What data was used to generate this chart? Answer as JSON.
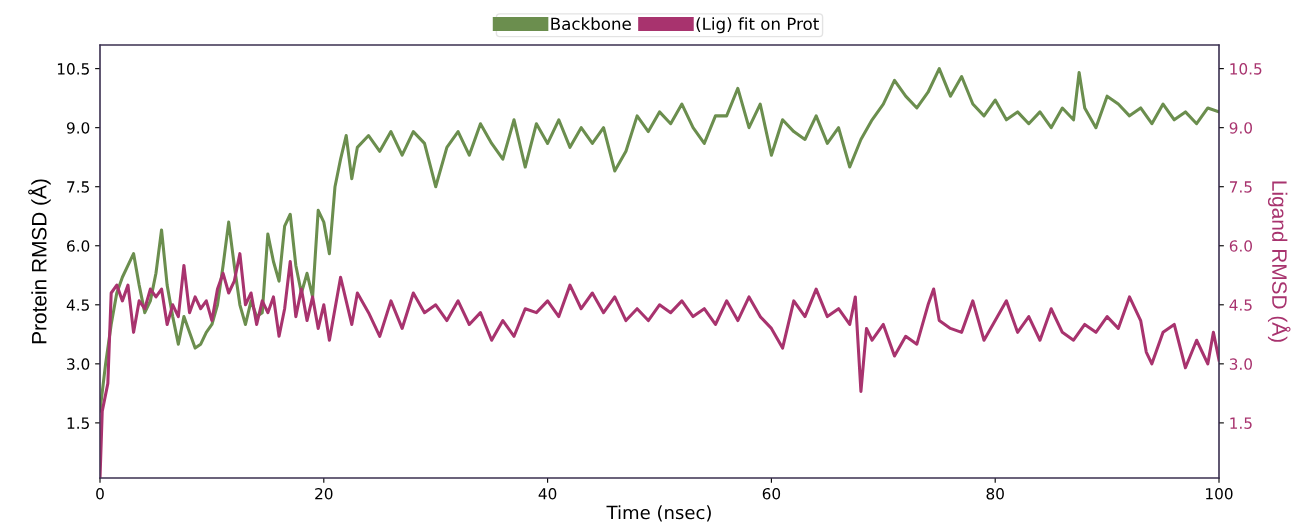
{
  "chart_data": {
    "type": "line",
    "xlabel": "Time (nsec)",
    "ylabel": "Protein RMSD (Å)",
    "y2label": "Ligand RMSD (Å)",
    "xlim": [
      0,
      100
    ],
    "xticks": [
      0,
      20,
      40,
      60,
      80,
      100
    ],
    "ylim": [
      0.1,
      11.1
    ],
    "yticks": [
      1.5,
      {
        "value": 3,
        "label": "3.0"
      },
      4.5,
      {
        "value": 6,
        "label": "6.0"
      },
      7.5,
      {
        "value": 9,
        "label": "9.0"
      },
      10.5
    ],
    "y2lim": [
      0.1,
      11.1
    ],
    "y2ticks": [
      1.5,
      {
        "value": 3,
        "label": "3.0"
      },
      4.5,
      {
        "value": 6,
        "label": "6.0"
      },
      7.5,
      {
        "value": 9,
        "label": "9.0"
      },
      10.5
    ],
    "legend": "top",
    "grid": false,
    "marker": "none",
    "line_style": "solid",
    "series": [
      {
        "name": "Backbone",
        "color": "#6b8e4e",
        "x": [
          0,
          0.5,
          1,
          1.5,
          2,
          2.5,
          3,
          3.5,
          4,
          4.5,
          5,
          5.5,
          6,
          6.5,
          7,
          7.5,
          8,
          8.5,
          9,
          9.5,
          10,
          10.5,
          11,
          11.5,
          12,
          12.5,
          13,
          13.5,
          14,
          14.5,
          15,
          15.5,
          16,
          16.5,
          17,
          17.5,
          18,
          18.5,
          19,
          19.5,
          20,
          20.5,
          21,
          21.5,
          22,
          22.5,
          23,
          24,
          25,
          26,
          27,
          28,
          29,
          30,
          31,
          32,
          33,
          34,
          35,
          36,
          37,
          38,
          39,
          40,
          41,
          42,
          43,
          44,
          45,
          46,
          47,
          48,
          49,
          50,
          51,
          52,
          53,
          54,
          55,
          56,
          57,
          58,
          59,
          60,
          61,
          62,
          63,
          64,
          65,
          66,
          67,
          68,
          69,
          70,
          71,
          72,
          73,
          74,
          75,
          76,
          77,
          78,
          79,
          80,
          81,
          82,
          83,
          84,
          85,
          86,
          87,
          87.5,
          88,
          89,
          90,
          91,
          92,
          93,
          94,
          95,
          96,
          97,
          98,
          99,
          100
        ],
        "values": [
          1.8,
          3.0,
          4.0,
          4.8,
          5.2,
          5.5,
          5.8,
          5.0,
          4.3,
          4.6,
          5.3,
          6.4,
          5.0,
          4.2,
          3.5,
          4.2,
          3.8,
          3.4,
          3.5,
          3.8,
          4.0,
          4.5,
          5.5,
          6.6,
          5.5,
          4.5,
          4.0,
          4.6,
          4.2,
          4.3,
          6.3,
          5.6,
          5.1,
          6.5,
          6.8,
          5.5,
          4.8,
          5.3,
          4.7,
          6.9,
          6.6,
          5.8,
          7.5,
          8.2,
          8.8,
          7.7,
          8.5,
          8.8,
          8.4,
          8.9,
          8.3,
          8.9,
          8.6,
          7.5,
          8.5,
          8.9,
          8.3,
          9.1,
          8.6,
          8.2,
          9.2,
          8.0,
          9.1,
          8.6,
          9.2,
          8.5,
          9.0,
          8.6,
          9.0,
          7.9,
          8.4,
          9.3,
          8.9,
          9.4,
          9.1,
          9.6,
          9.0,
          8.6,
          9.3,
          9.3,
          10.0,
          9.0,
          9.6,
          8.3,
          9.2,
          8.9,
          8.7,
          9.3,
          8.6,
          9.0,
          8.0,
          8.7,
          9.2,
          9.6,
          10.2,
          9.8,
          9.5,
          9.9,
          10.5,
          9.8,
          10.3,
          9.6,
          9.3,
          9.7,
          9.2,
          9.4,
          9.1,
          9.4,
          9.0,
          9.5,
          9.2,
          10.4,
          9.5,
          9.0,
          9.8,
          9.6,
          9.3,
          9.5,
          9.1,
          9.6,
          9.2,
          9.4,
          9.1,
          9.5,
          9.4
        ]
      },
      {
        "name": "(Lig) fit on Prot",
        "color": "#a8336e",
        "axis": "y2",
        "x": [
          0,
          0.2,
          0.7,
          1,
          1.5,
          2,
          2.5,
          3,
          3.5,
          4,
          4.5,
          5,
          5.5,
          6,
          6.5,
          7,
          7.5,
          8,
          8.5,
          9,
          9.5,
          10,
          10.5,
          11,
          11.5,
          12,
          12.5,
          13,
          13.5,
          14,
          14.5,
          15,
          15.5,
          16,
          16.5,
          17,
          17.5,
          18,
          18.5,
          19,
          19.5,
          20,
          20.5,
          21,
          21.5,
          22,
          22.5,
          23,
          24,
          25,
          26,
          27,
          28,
          29,
          30,
          31,
          32,
          33,
          34,
          35,
          36,
          37,
          38,
          39,
          40,
          41,
          42,
          43,
          44,
          45,
          46,
          47,
          48,
          49,
          50,
          51,
          52,
          53,
          54,
          55,
          56,
          57,
          58,
          59,
          60,
          61,
          62,
          63,
          64,
          65,
          66,
          67,
          67.5,
          68,
          68.5,
          69,
          70,
          71,
          72,
          73,
          74,
          74.5,
          75,
          76,
          77,
          78,
          79,
          80,
          81,
          82,
          83,
          84,
          85,
          86,
          87,
          88,
          89,
          90,
          91,
          92,
          93,
          93.5,
          94,
          95,
          96,
          97,
          98,
          99,
          99.5,
          100
        ],
        "values": [
          0.1,
          1.8,
          2.5,
          4.8,
          5.0,
          4.6,
          5.0,
          3.8,
          4.6,
          4.4,
          4.9,
          4.7,
          4.9,
          4.0,
          4.5,
          4.2,
          5.5,
          4.3,
          4.7,
          4.4,
          4.6,
          4.1,
          4.9,
          5.3,
          4.8,
          5.1,
          5.8,
          4.5,
          4.8,
          4.0,
          4.6,
          4.3,
          4.7,
          3.7,
          4.4,
          5.6,
          4.2,
          4.9,
          4.1,
          4.7,
          3.9,
          4.5,
          3.6,
          4.4,
          5.2,
          4.6,
          4.0,
          4.8,
          4.3,
          3.7,
          4.6,
          3.9,
          4.8,
          4.3,
          4.5,
          4.1,
          4.6,
          4.0,
          4.3,
          3.6,
          4.1,
          3.7,
          4.4,
          4.3,
          4.6,
          4.2,
          5.0,
          4.4,
          4.8,
          4.3,
          4.7,
          4.1,
          4.4,
          4.1,
          4.5,
          4.3,
          4.6,
          4.2,
          4.4,
          4.0,
          4.6,
          4.1,
          4.7,
          4.2,
          3.9,
          3.4,
          4.6,
          4.2,
          4.9,
          4.2,
          4.4,
          4.0,
          4.7,
          2.3,
          3.9,
          3.6,
          4.0,
          3.2,
          3.7,
          3.5,
          4.5,
          4.9,
          4.1,
          3.9,
          3.8,
          4.6,
          3.6,
          4.1,
          4.6,
          3.8,
          4.2,
          3.6,
          4.4,
          3.8,
          3.6,
          4.0,
          3.8,
          4.2,
          3.9,
          4.7,
          4.1,
          3.3,
          3.0,
          3.8,
          4.0,
          2.9,
          3.6,
          3.0,
          3.8,
          3.1
        ]
      }
    ]
  }
}
